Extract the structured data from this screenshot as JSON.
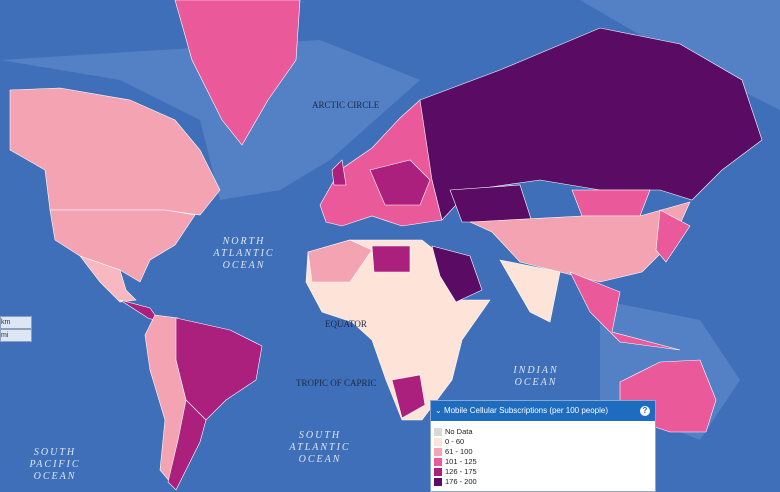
{
  "map_labels": {
    "arctic_circle": "ARCTIC CIRCLE",
    "equator": "EQUATOR",
    "tropic_of_capricorn": "TROPIC OF CAPRIC",
    "north_atlantic": [
      "NORTH",
      "ATLANTIC",
      "OCEAN"
    ],
    "south_atlantic": [
      "SOUTH",
      "ATLANTIC",
      "OCEAN"
    ],
    "south_pacific": [
      "SOUTH",
      "PACIFIC",
      "OCEAN"
    ],
    "indian": [
      "INDIAN",
      "OCEAN"
    ]
  },
  "scale": [
    "km",
    "mi"
  ],
  "legend": {
    "title": "Mobile Cellular Subscriptions (per 100 people)",
    "help": "?",
    "items": [
      {
        "label": "No Data",
        "color": "#d9d9d9"
      },
      {
        "label": "0 - 60",
        "color": "#fde3d8"
      },
      {
        "label": "61 - 100",
        "color": "#f4a3b3"
      },
      {
        "label": "101 - 125",
        "color": "#ea5a9b"
      },
      {
        "label": "126 - 175",
        "color": "#ab1f7d"
      },
      {
        "label": "176 - 200",
        "color": "#5a0b63"
      }
    ]
  }
}
